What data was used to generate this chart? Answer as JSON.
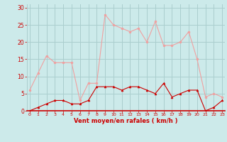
{
  "x": [
    0,
    1,
    2,
    3,
    4,
    5,
    6,
    7,
    8,
    9,
    10,
    11,
    12,
    13,
    14,
    15,
    16,
    17,
    18,
    19,
    20,
    21,
    22,
    23
  ],
  "rafales": [
    6,
    11,
    16,
    14,
    14,
    14,
    3,
    8,
    8,
    28,
    25,
    24,
    23,
    24,
    20,
    26,
    19,
    19,
    20,
    23,
    15,
    4,
    5,
    4
  ],
  "moyen": [
    0,
    1,
    2,
    3,
    3,
    2,
    2,
    3,
    7,
    7,
    7,
    6,
    7,
    7,
    6,
    5,
    8,
    4,
    5,
    6,
    6,
    0,
    1,
    3
  ],
  "bg_color": "#cceaea",
  "grid_color": "#aacece",
  "line_color_rafales": "#f0a0a0",
  "line_color_moyen": "#cc0000",
  "xlabel": "Vent moyen/en rafales ( km/h )",
  "xlabel_color": "#cc0000",
  "tick_color": "#cc0000",
  "yticks": [
    0,
    5,
    10,
    15,
    20,
    25,
    30
  ],
  "xticks": [
    0,
    1,
    2,
    3,
    4,
    5,
    6,
    7,
    8,
    9,
    10,
    11,
    12,
    13,
    14,
    15,
    16,
    17,
    18,
    19,
    20,
    21,
    22,
    23
  ],
  "ylim": [
    0,
    31
  ],
  "xlim": [
    -0.3,
    23.3
  ]
}
